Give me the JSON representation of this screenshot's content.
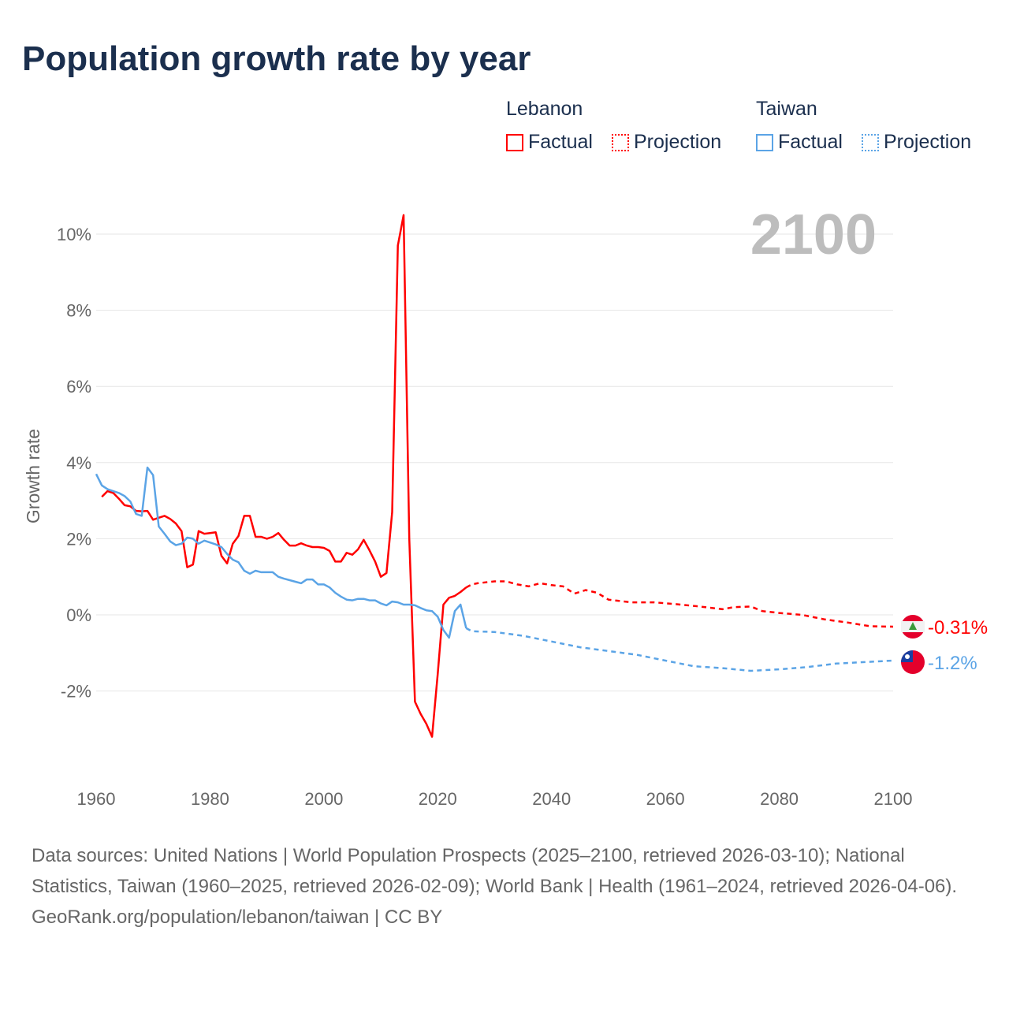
{
  "chart_data": {
    "type": "line",
    "title": "Population growth rate by year",
    "xlabel": "",
    "ylabel": "Growth rate",
    "xlim": [
      1960,
      2100
    ],
    "ylim": [
      -4,
      10.5
    ],
    "x_ticks": [
      1960,
      1980,
      2000,
      2020,
      2040,
      2060,
      2080,
      2100
    ],
    "x_tick_labels": [
      "1960",
      "1980",
      "2000",
      "2020",
      "2040",
      "2060",
      "2080",
      "2100"
    ],
    "y_ticks": [
      -2,
      0,
      2,
      4,
      6,
      8,
      10
    ],
    "y_tick_labels": [
      "-2%",
      "0%",
      "2%",
      "4%",
      "6%",
      "8%",
      "10%"
    ],
    "grid": true,
    "year_label": "2100",
    "legend": {
      "placement": "top-right",
      "groups": [
        {
          "country": "Lebanon",
          "items": [
            "Factual",
            "Projection"
          ],
          "color": "#ff0000"
        },
        {
          "country": "Taiwan",
          "items": [
            "Factual",
            "Projection"
          ],
          "color": "#5ba4e6"
        }
      ]
    },
    "series": [
      {
        "name": "Lebanon",
        "color": "#ff0000",
        "end_label": "-0.31%",
        "factual": {
          "x": [
            1961,
            1962,
            1963,
            1964,
            1965,
            1966,
            1967,
            1968,
            1969,
            1970,
            1971,
            1972,
            1973,
            1974,
            1975,
            1976,
            1977,
            1978,
            1979,
            1980,
            1981,
            1982,
            1983,
            1984,
            1985,
            1986,
            1987,
            1988,
            1989,
            1990,
            1991,
            1992,
            1993,
            1994,
            1995,
            1996,
            1997,
            1998,
            1999,
            2000,
            2001,
            2002,
            2003,
            2004,
            2005,
            2006,
            2007,
            2008,
            2009,
            2010,
            2011,
            2012,
            2013,
            2014,
            2015,
            2016,
            2017,
            2018,
            2019,
            2020,
            2021,
            2022,
            2023,
            2024,
            2025
          ],
          "y": [
            3.1,
            3.25,
            3.2,
            3.05,
            2.88,
            2.85,
            2.73,
            2.72,
            2.73,
            2.5,
            2.55,
            2.6,
            2.52,
            2.4,
            2.2,
            1.25,
            1.32,
            2.2,
            2.13,
            2.15,
            2.17,
            1.55,
            1.35,
            1.87,
            2.07,
            2.6,
            2.6,
            2.05,
            2.05,
            2.0,
            2.05,
            2.15,
            1.97,
            1.82,
            1.82,
            1.88,
            1.82,
            1.78,
            1.78,
            1.76,
            1.68,
            1.4,
            1.4,
            1.63,
            1.58,
            1.72,
            1.97,
            1.7,
            1.4,
            1.0,
            1.1,
            2.7,
            9.7,
            10.5,
            2.0,
            -2.28,
            -2.6,
            -2.86,
            -3.2,
            -1.55,
            0.27,
            0.45,
            0.5,
            0.6,
            0.72
          ]
        },
        "projection": {
          "x": [
            2025,
            2026,
            2027,
            2030,
            2032,
            2034,
            2036,
            2038,
            2040,
            2042,
            2044,
            2046,
            2048,
            2050,
            2054,
            2058,
            2062,
            2066,
            2070,
            2072,
            2075,
            2077,
            2080,
            2084,
            2088,
            2092,
            2096,
            2100
          ],
          "y": [
            0.72,
            0.8,
            0.83,
            0.88,
            0.88,
            0.8,
            0.75,
            0.83,
            0.78,
            0.75,
            0.56,
            0.65,
            0.58,
            0.4,
            0.33,
            0.33,
            0.28,
            0.22,
            0.15,
            0.2,
            0.22,
            0.1,
            0.05,
            0.0,
            -0.12,
            -0.2,
            -0.3,
            -0.31
          ]
        }
      },
      {
        "name": "Taiwan",
        "color": "#5ba4e6",
        "end_label": "-1.2%",
        "factual": {
          "x": [
            1960,
            1961,
            1962,
            1963,
            1964,
            1965,
            1966,
            1967,
            1968,
            1969,
            1970,
            1971,
            1972,
            1973,
            1974,
            1975,
            1976,
            1977,
            1978,
            1979,
            1980,
            1981,
            1982,
            1983,
            1984,
            1985,
            1986,
            1987,
            1988,
            1989,
            1990,
            1991,
            1992,
            1993,
            1994,
            1995,
            1996,
            1997,
            1998,
            1999,
            2000,
            2001,
            2002,
            2003,
            2004,
            2005,
            2006,
            2007,
            2008,
            2009,
            2010,
            2011,
            2012,
            2013,
            2014,
            2015,
            2016,
            2017,
            2018,
            2019,
            2020,
            2021,
            2022,
            2023,
            2024,
            2025
          ],
          "y": [
            3.7,
            3.4,
            3.3,
            3.25,
            3.2,
            3.12,
            2.98,
            2.65,
            2.6,
            3.87,
            3.67,
            2.32,
            2.13,
            1.93,
            1.83,
            1.87,
            2.03,
            2.0,
            1.87,
            1.95,
            1.9,
            1.85,
            1.78,
            1.6,
            1.45,
            1.38,
            1.16,
            1.08,
            1.16,
            1.12,
            1.12,
            1.12,
            1.0,
            0.95,
            0.91,
            0.87,
            0.83,
            0.93,
            0.93,
            0.8,
            0.8,
            0.72,
            0.58,
            0.48,
            0.4,
            0.38,
            0.42,
            0.42,
            0.38,
            0.38,
            0.3,
            0.25,
            0.35,
            0.33,
            0.27,
            0.27,
            0.25,
            0.18,
            0.12,
            0.1,
            -0.05,
            -0.4,
            -0.6,
            0.1,
            0.27,
            -0.35
          ]
        },
        "projection": {
          "x": [
            2025,
            2026,
            2030,
            2035,
            2040,
            2045,
            2050,
            2055,
            2060,
            2065,
            2070,
            2075,
            2080,
            2085,
            2090,
            2095,
            2100
          ],
          "y": [
            -0.35,
            -0.43,
            -0.45,
            -0.55,
            -0.7,
            -0.85,
            -0.95,
            -1.05,
            -1.2,
            -1.35,
            -1.4,
            -1.47,
            -1.43,
            -1.37,
            -1.28,
            -1.24,
            -1.2
          ]
        }
      }
    ]
  },
  "footer": {
    "sources": "Data sources: United Nations | World Population Prospects (2025–2100, retrieved 2026-03-10); National Statistics, Taiwan (1960–2025, retrieved 2026-02-09); World Bank | Health (1961–2024, retrieved 2026-04-06).",
    "credit": "GeoRank.org/population/lebanon/taiwan | CC BY"
  }
}
